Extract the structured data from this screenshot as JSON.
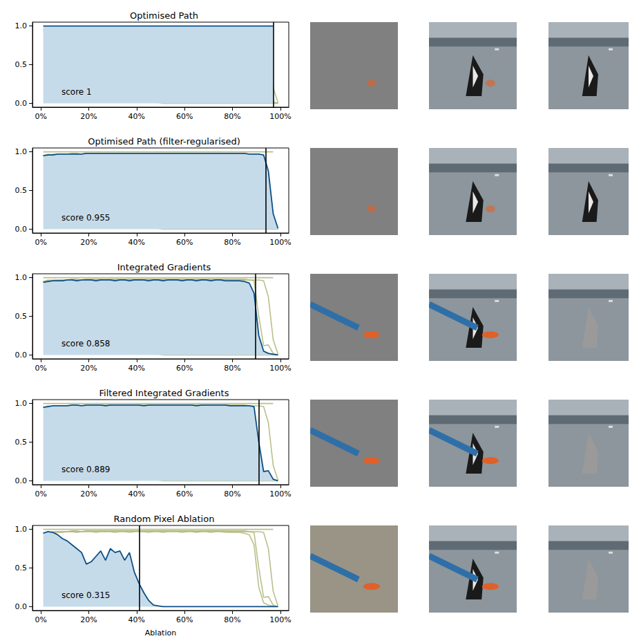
{
  "chart_data": {
    "type": "line",
    "x_label": "Ablation",
    "x": [
      1,
      3,
      5,
      7,
      9,
      11,
      13,
      15,
      17,
      19,
      21,
      23,
      25,
      27,
      29,
      31,
      33,
      35,
      37,
      39,
      41,
      43,
      45,
      47,
      49,
      51,
      53,
      55,
      57,
      59,
      61,
      63,
      65,
      67,
      69,
      71,
      73,
      75,
      77,
      79,
      81,
      83,
      85,
      87,
      89,
      91,
      93,
      95,
      97,
      99
    ],
    "xlim": [
      -3.5,
      103.5
    ],
    "xticks": [
      {
        "value": 0,
        "label": "0%"
      },
      {
        "value": 20,
        "label": "20%"
      },
      {
        "value": 40,
        "label": "40%"
      },
      {
        "value": 60,
        "label": "60%"
      },
      {
        "value": 80,
        "label": "80%"
      },
      {
        "value": 100,
        "label": "100%"
      }
    ],
    "ylim": [
      -0.05,
      1.05
    ],
    "yticks": [
      {
        "value": 0,
        "label": "0.0"
      },
      {
        "value": 0.5,
        "label": "0.5"
      },
      {
        "value": 1,
        "label": "1.0"
      }
    ],
    "grid": false,
    "color": "#0b4f86",
    "series": [
      {
        "name": "Optimised Path",
        "annotation": "score 1",
        "threshold": 97,
        "values": [
          1,
          1,
          1,
          1,
          1,
          1,
          1,
          1,
          1,
          1,
          1,
          1,
          1,
          1,
          1,
          1,
          1,
          1,
          1,
          1,
          1,
          1,
          1,
          1,
          1,
          1,
          1,
          1,
          1,
          1,
          1,
          1,
          1,
          1,
          1,
          1,
          1,
          1,
          1,
          1,
          1,
          1,
          1,
          1,
          1,
          1,
          1,
          1,
          1,
          null
        ]
      },
      {
        "name": "Optimised Path (filter-regularised)",
        "annotation": "score 0.955",
        "threshold": 94,
        "values": [
          0.95,
          0.96,
          0.96,
          0.97,
          0.97,
          0.97,
          0.97,
          0.97,
          0.97,
          0.98,
          0.98,
          0.98,
          0.98,
          0.98,
          0.98,
          0.98,
          0.98,
          0.98,
          0.98,
          0.98,
          0.98,
          0.98,
          0.98,
          0.98,
          0.98,
          0.98,
          0.98,
          0.98,
          0.98,
          0.98,
          0.98,
          0.98,
          0.98,
          0.98,
          0.98,
          0.98,
          0.98,
          0.98,
          0.98,
          0.98,
          0.98,
          0.98,
          0.98,
          0.97,
          0.97,
          0.97,
          0.96,
          0.75,
          0.2,
          0.01
        ]
      },
      {
        "name": "Integrated Gradients",
        "annotation": "score 0.858",
        "threshold": 89.5,
        "values": [
          0.94,
          0.95,
          0.96,
          0.96,
          0.96,
          0.97,
          0.97,
          0.96,
          0.97,
          0.97,
          0.97,
          0.96,
          0.97,
          0.97,
          0.97,
          0.96,
          0.97,
          0.97,
          0.96,
          0.97,
          0.97,
          0.97,
          0.96,
          0.97,
          0.97,
          0.96,
          0.97,
          0.97,
          0.97,
          0.96,
          0.97,
          0.97,
          0.96,
          0.97,
          0.97,
          0.96,
          0.97,
          0.97,
          0.96,
          0.96,
          0.96,
          0.96,
          0.95,
          0.93,
          0.8,
          0.25,
          0.05,
          0.02,
          0.01,
          0
        ]
      },
      {
        "name": "Filtered Integrated Gradients",
        "annotation": "score 0.889",
        "threshold": 91,
        "values": [
          0.95,
          0.96,
          0.97,
          0.97,
          0.97,
          0.97,
          0.98,
          0.98,
          0.97,
          0.98,
          0.98,
          0.98,
          0.98,
          0.97,
          0.98,
          0.98,
          0.98,
          0.98,
          0.98,
          0.98,
          0.98,
          0.97,
          0.98,
          0.98,
          0.98,
          0.98,
          0.98,
          0.98,
          0.98,
          0.98,
          0.98,
          0.98,
          0.97,
          0.98,
          0.98,
          0.98,
          0.98,
          0.98,
          0.98,
          0.97,
          0.97,
          0.97,
          0.97,
          0.97,
          0.96,
          0.5,
          0.12,
          0.13,
          0.02,
          0
        ]
      },
      {
        "name": "Random Pixel Ablation",
        "annotation": "score 0.315",
        "threshold": 41,
        "values": [
          0.95,
          0.97,
          0.96,
          0.93,
          0.88,
          0.85,
          0.8,
          0.75,
          0.7,
          0.55,
          0.58,
          0.65,
          0.72,
          0.6,
          0.75,
          0.7,
          0.72,
          0.6,
          0.7,
          0.45,
          0.3,
          0.18,
          0.08,
          0.02,
          0.01,
          0,
          0,
          0,
          0,
          0,
          0,
          0,
          0,
          0,
          0,
          0,
          0,
          0,
          0,
          0,
          0,
          0,
          0,
          0,
          0,
          0,
          0,
          0,
          0,
          0
        ]
      }
    ]
  }
}
